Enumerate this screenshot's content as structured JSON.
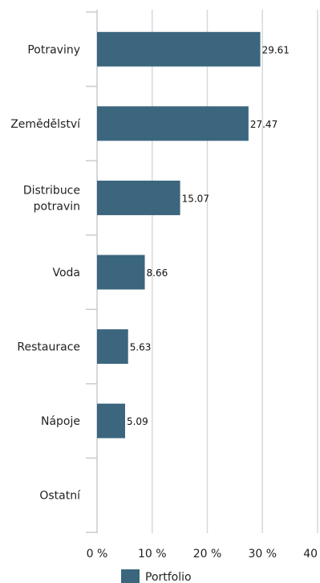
{
  "chart_data": {
    "type": "bar",
    "orientation": "horizontal",
    "categories": [
      [
        "Potraviny"
      ],
      [
        "Zemědělství"
      ],
      [
        "Distribuce",
        "potravin"
      ],
      [
        "Voda"
      ],
      [
        "Restaurace"
      ],
      [
        "Nápoje"
      ],
      [
        "Ostatní"
      ]
    ],
    "series": [
      {
        "name": "Portfolio",
        "values": [
          29.61,
          27.47,
          15.07,
          8.66,
          5.63,
          5.09,
          null
        ],
        "value_labels": [
          "29.61",
          "27.47",
          "15.07",
          "8.66",
          "5.63",
          "5.09",
          ""
        ]
      }
    ],
    "xlim": [
      0,
      40
    ],
    "x_ticks": [
      0,
      10,
      20,
      30,
      40
    ],
    "x_tick_labels": [
      "0 %",
      "10 %",
      "20 %",
      "30 %",
      "40 %"
    ],
    "grid": "vertical",
    "legend_position": "bottom",
    "colors": {
      "bar": "#3b667e",
      "grid": "#d6d9dc",
      "axis": "#c8ccd0"
    }
  }
}
